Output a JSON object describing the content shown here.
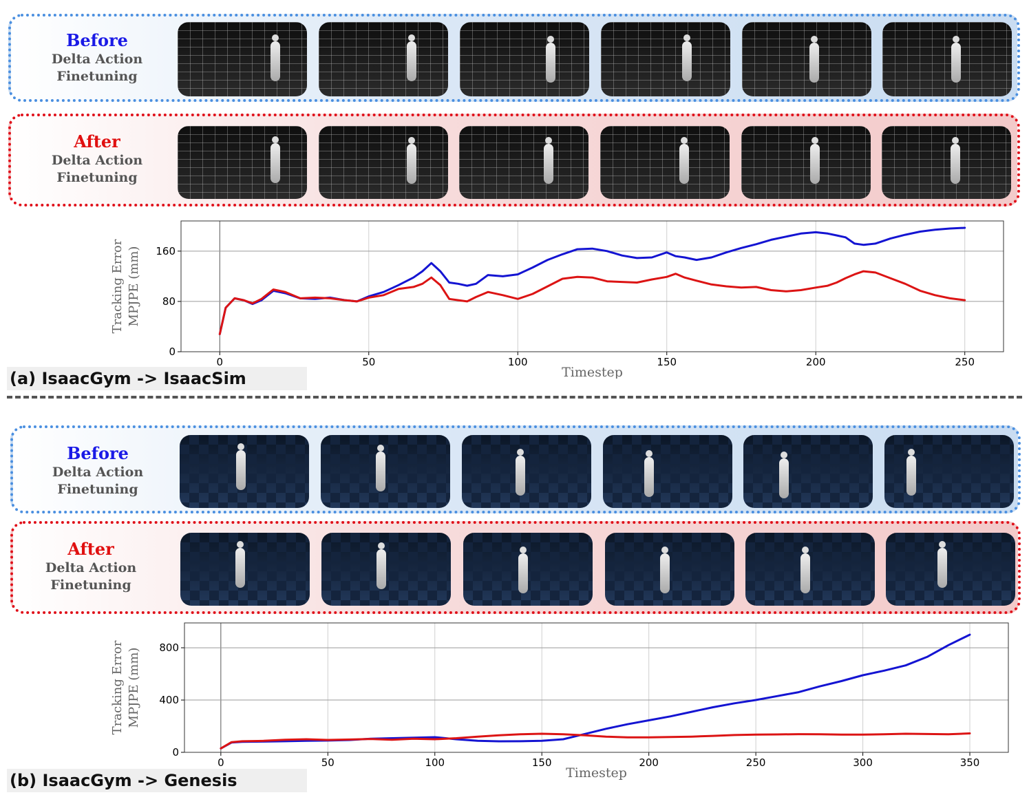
{
  "panels": {
    "a": {
      "before_label": {
        "title": "Before",
        "line1": "Delta Action",
        "line2": "Finetuning"
      },
      "after_label": {
        "title": "After",
        "line1": "Delta Action",
        "line2": "Finetuning"
      },
      "section_label": "(a) IsaacGym -> IsaacSim"
    },
    "b": {
      "before_label": {
        "title": "Before",
        "line1": "Delta Action",
        "line2": "Finetuning"
      },
      "after_label": {
        "title": "After",
        "line1": "Delta Action",
        "line2": "Finetuning"
      },
      "section_label": "(b) IsaacGym -> Genesis"
    }
  },
  "colors": {
    "before": "#1414d2",
    "after": "#dc1414"
  },
  "chart_data": [
    {
      "type": "line",
      "xlabel": "Timestep",
      "ylabel_line1": "Tracking Error",
      "ylabel_line2": "MPJPE (mm)",
      "xlim": [
        -13,
        263
      ],
      "ylim": [
        0,
        208
      ],
      "xticks": [
        0,
        50,
        100,
        150,
        200,
        250
      ],
      "yticks": [
        0,
        80,
        160
      ],
      "grid": true,
      "series": [
        {
          "color": "#1414d2",
          "x": [
            0,
            2,
            5,
            8,
            11,
            14,
            18,
            22,
            27,
            32,
            37,
            42,
            46,
            50,
            55,
            60,
            65,
            68,
            71,
            74,
            77,
            80,
            83,
            86,
            90,
            95,
            100,
            105,
            110,
            115,
            120,
            125,
            130,
            135,
            140,
            145,
            150,
            153,
            156,
            160,
            165,
            170,
            175,
            180,
            185,
            190,
            195,
            200,
            204,
            207,
            210,
            213,
            216,
            220,
            225,
            230,
            235,
            240,
            245,
            250
          ],
          "y": [
            28,
            70,
            85,
            82,
            76,
            82,
            97,
            93,
            85,
            84,
            86,
            82,
            80,
            88,
            95,
            106,
            118,
            128,
            141,
            128,
            110,
            108,
            105,
            108,
            122,
            120,
            123,
            134,
            146,
            155,
            163,
            164,
            160,
            153,
            149,
            150,
            158,
            152,
            150,
            146,
            150,
            158,
            165,
            171,
            178,
            183,
            188,
            190,
            188,
            185,
            182,
            172,
            170,
            172,
            180,
            186,
            191,
            194,
            196,
            197
          ]
        },
        {
          "color": "#dc1414",
          "x": [
            0,
            2,
            5,
            8,
            11,
            14,
            18,
            22,
            27,
            32,
            37,
            42,
            46,
            50,
            55,
            60,
            65,
            68,
            71,
            74,
            77,
            80,
            83,
            86,
            90,
            95,
            100,
            105,
            110,
            115,
            120,
            125,
            130,
            135,
            140,
            145,
            150,
            153,
            156,
            160,
            165,
            170,
            175,
            180,
            185,
            190,
            195,
            200,
            204,
            207,
            210,
            213,
            216,
            220,
            225,
            230,
            235,
            240,
            245,
            250
          ],
          "y": [
            28,
            70,
            85,
            82,
            77,
            84,
            99,
            95,
            85,
            86,
            85,
            82,
            80,
            86,
            90,
            100,
            103,
            108,
            118,
            106,
            84,
            82,
            80,
            87,
            95,
            90,
            84,
            92,
            104,
            116,
            119,
            118,
            112,
            111,
            110,
            115,
            119,
            124,
            118,
            113,
            107,
            104,
            102,
            103,
            98,
            96,
            98,
            102,
            105,
            110,
            117,
            123,
            128,
            126,
            117,
            108,
            97,
            90,
            85,
            82
          ]
        }
      ]
    },
    {
      "type": "line",
      "xlabel": "Timestep",
      "ylabel_line1": "Tracking Error",
      "ylabel_line2": "MPJPE (mm)",
      "xlim": [
        -17,
        368
      ],
      "ylim": [
        0,
        990
      ],
      "xticks": [
        0,
        50,
        100,
        150,
        200,
        250,
        300,
        350
      ],
      "yticks": [
        0,
        400,
        800
      ],
      "grid": true,
      "series": [
        {
          "color": "#1414d2",
          "x": [
            0,
            5,
            10,
            20,
            30,
            40,
            50,
            60,
            70,
            80,
            90,
            100,
            110,
            120,
            130,
            140,
            150,
            160,
            170,
            180,
            190,
            200,
            210,
            220,
            230,
            240,
            250,
            260,
            270,
            280,
            290,
            300,
            310,
            320,
            330,
            340,
            350
          ],
          "y": [
            30,
            75,
            80,
            82,
            85,
            88,
            90,
            94,
            104,
            108,
            112,
            116,
            100,
            88,
            84,
            85,
            88,
            100,
            140,
            180,
            215,
            245,
            275,
            310,
            345,
            375,
            400,
            430,
            460,
            505,
            545,
            590,
            625,
            665,
            730,
            820,
            900
          ]
        },
        {
          "color": "#dc1414",
          "x": [
            0,
            5,
            10,
            20,
            30,
            40,
            50,
            60,
            70,
            80,
            90,
            100,
            110,
            120,
            130,
            140,
            150,
            160,
            170,
            180,
            190,
            200,
            210,
            220,
            230,
            240,
            250,
            260,
            270,
            280,
            290,
            300,
            310,
            320,
            330,
            340,
            350
          ],
          "y": [
            30,
            78,
            85,
            88,
            96,
            100,
            95,
            98,
            102,
            96,
            104,
            100,
            108,
            120,
            130,
            138,
            142,
            138,
            130,
            120,
            115,
            115,
            117,
            120,
            126,
            132,
            136,
            137,
            139,
            138,
            136,
            136,
            138,
            142,
            140,
            138,
            145
          ]
        }
      ]
    }
  ]
}
